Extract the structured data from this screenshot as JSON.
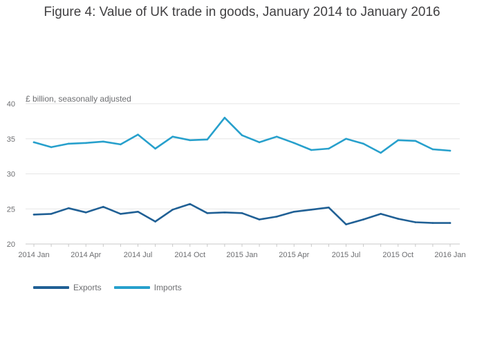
{
  "chart_data": {
    "type": "line",
    "title": "Figure 4: Value of UK trade in goods, January 2014 to January 2016",
    "ylabel": "£ billion, seasonally adjusted",
    "xlabel": "",
    "ylim": [
      20,
      40
    ],
    "yticks": [
      20,
      25,
      30,
      35,
      40
    ],
    "x": [
      "2014 Jan",
      "2014 Feb",
      "2014 Mar",
      "2014 Apr",
      "2014 May",
      "2014 Jun",
      "2014 Jul",
      "2014 Aug",
      "2014 Sep",
      "2014 Oct",
      "2014 Nov",
      "2014 Dec",
      "2015 Jan",
      "2015 Feb",
      "2015 Mar",
      "2015 Apr",
      "2015 May",
      "2015 Jun",
      "2015 Jul",
      "2015 Aug",
      "2015 Sep",
      "2015 Oct",
      "2015 Nov",
      "2015 Dec",
      "2016 Jan"
    ],
    "xtick_labels": [
      {
        "index": 0,
        "label": "2014 Jan"
      },
      {
        "index": 3,
        "label": "2014 Apr"
      },
      {
        "index": 6,
        "label": "2014 Jul"
      },
      {
        "index": 9,
        "label": "2014 Oct"
      },
      {
        "index": 12,
        "label": "2015 Jan"
      },
      {
        "index": 15,
        "label": "2015 Apr"
      },
      {
        "index": 18,
        "label": "2015 Jul"
      },
      {
        "index": 21,
        "label": "2015 Oct"
      },
      {
        "index": 24,
        "label": "2016 Jan"
      }
    ],
    "series": [
      {
        "name": "Exports",
        "color": "#206095",
        "values": [
          24.2,
          24.3,
          25.1,
          24.5,
          25.3,
          24.3,
          24.6,
          23.2,
          24.9,
          25.7,
          24.4,
          24.5,
          24.4,
          23.5,
          23.9,
          24.6,
          24.9,
          25.2,
          22.8,
          23.5,
          24.3,
          23.6,
          23.1,
          23.0,
          23.0
        ]
      },
      {
        "name": "Imports",
        "color": "#27a0cc",
        "values": [
          34.5,
          33.8,
          34.3,
          34.4,
          34.6,
          34.2,
          35.6,
          33.6,
          35.3,
          34.8,
          34.9,
          38.0,
          35.5,
          34.5,
          35.3,
          34.4,
          33.4,
          33.6,
          35.0,
          34.3,
          33.0,
          34.8,
          34.7,
          33.5,
          33.3
        ]
      }
    ],
    "legend_position": "bottom-left",
    "grid": true
  }
}
